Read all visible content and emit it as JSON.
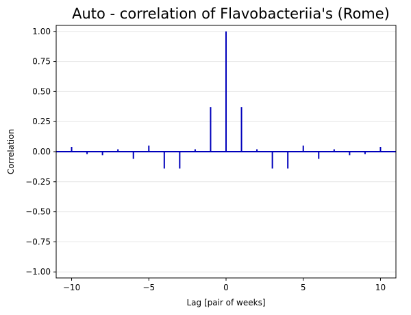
{
  "chart_data": {
    "type": "bar",
    "title": "Auto - correlation of Flavobacteriia's (Rome)",
    "xlabel": "Lag [pair of weeks]",
    "ylabel": "Correlation",
    "xlim": [
      -11,
      11
    ],
    "ylim": [
      -1.05,
      1.05
    ],
    "xticks": [
      -10,
      -5,
      0,
      5,
      10
    ],
    "xtick_labels": [
      "−10",
      "−5",
      "0",
      "5",
      "10"
    ],
    "yticks": [
      1.0,
      0.75,
      0.5,
      0.25,
      0.0,
      -0.25,
      -0.5,
      -0.75,
      -1.0
    ],
    "ytick_labels": [
      "1.00",
      "0.75",
      "0.50",
      "0.25",
      "0.00",
      "−0.25",
      "−0.50",
      "−0.75",
      "−1.00"
    ],
    "grid": "horizontal",
    "line_color": "#0000bb",
    "lags": [
      -10,
      -9,
      -8,
      -7,
      -6,
      -5,
      -4,
      -3,
      -2,
      -1,
      0,
      1,
      2,
      3,
      4,
      5,
      6,
      7,
      8,
      9,
      10
    ],
    "values": [
      0.04,
      -0.02,
      -0.03,
      0.02,
      -0.06,
      0.05,
      -0.14,
      -0.14,
      0.02,
      0.37,
      1.0,
      0.37,
      0.02,
      -0.14,
      -0.14,
      0.05,
      -0.06,
      0.02,
      -0.03,
      -0.02,
      0.04
    ]
  }
}
